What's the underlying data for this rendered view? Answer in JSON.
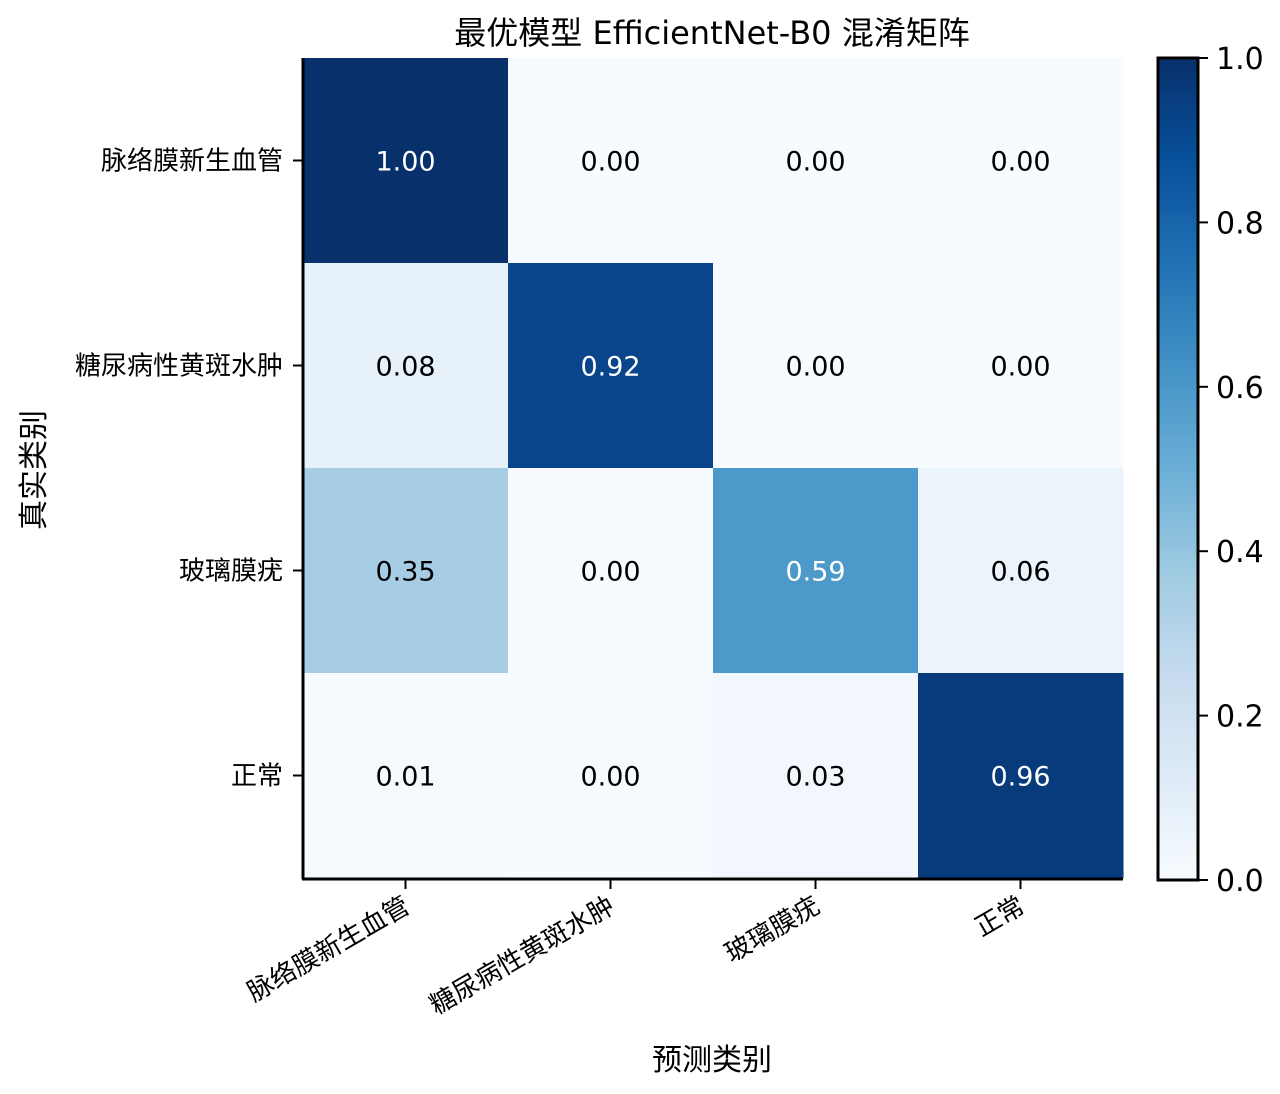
{
  "chart_data": {
    "type": "heatmap",
    "title": "最优模型 EfficientNet-B0 混淆矩阵",
    "xlabel": "预测类别",
    "ylabel": "真实类别",
    "x_categories": [
      "脉络膜新生血管",
      "糖尿病性黄斑水肿",
      "玻璃膜疣",
      "正常"
    ],
    "y_categories": [
      "脉络膜新生血管",
      "糖尿病性黄斑水肿",
      "玻璃膜疣",
      "正常"
    ],
    "values": [
      [
        1.0,
        0.0,
        0.0,
        0.0
      ],
      [
        0.08,
        0.92,
        0.0,
        0.0
      ],
      [
        0.35,
        0.0,
        0.59,
        0.06
      ],
      [
        0.01,
        0.0,
        0.03,
        0.96
      ]
    ],
    "value_labels": [
      [
        "1.00",
        "0.00",
        "0.00",
        "0.00"
      ],
      [
        "0.08",
        "0.92",
        "0.00",
        "0.00"
      ],
      [
        "0.35",
        "0.00",
        "0.59",
        "0.06"
      ],
      [
        "0.01",
        "0.00",
        "0.03",
        "0.96"
      ]
    ],
    "colormap": "Blues",
    "vmin": 0.0,
    "vmax": 1.0,
    "colorbar": {
      "ticks": [
        0.0,
        0.2,
        0.4,
        0.6,
        0.8,
        1.0
      ],
      "tick_labels": [
        "0.0",
        "0.2",
        "0.4",
        "0.6",
        "0.8",
        "1.0"
      ]
    },
    "grid": false
  }
}
